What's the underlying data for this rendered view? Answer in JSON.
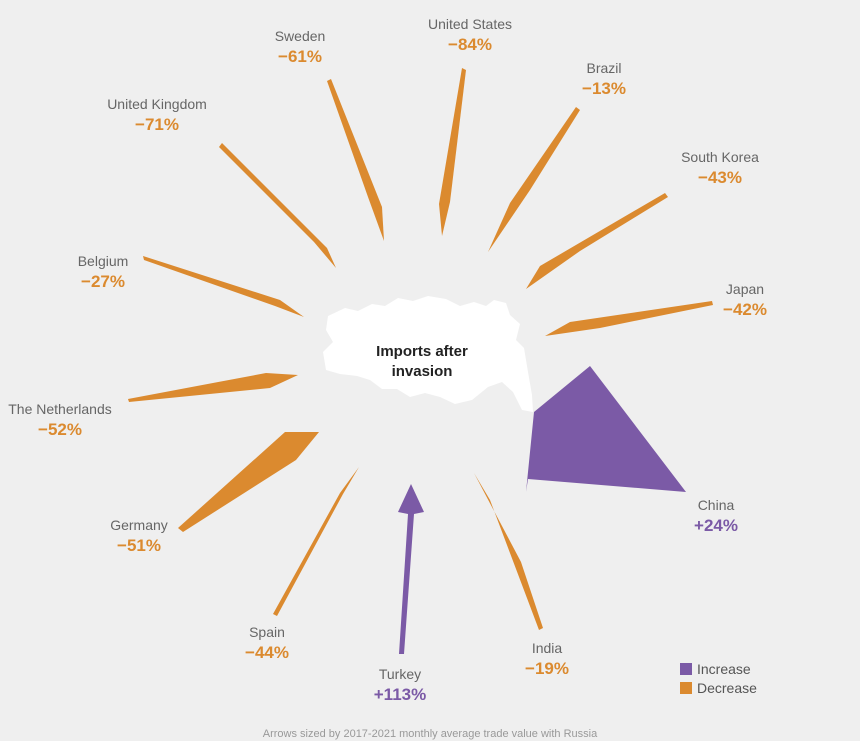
{
  "colors": {
    "increase": "#7b5aa6",
    "decrease": "#db8a2f",
    "map": "#ffffff"
  },
  "center_label": "Imports after invasion",
  "legend": {
    "increase": "Increase",
    "decrease": "Decrease"
  },
  "footnote": "Arrows sized by 2017-2021 monthly average trade value with Russia",
  "chart_data": {
    "type": "radial-arrow",
    "series": [
      {
        "country": "United States",
        "change": "−84%",
        "direction": "decrease"
      },
      {
        "country": "Brazil",
        "change": "−13%",
        "direction": "decrease"
      },
      {
        "country": "South Korea",
        "change": "−43%",
        "direction": "decrease"
      },
      {
        "country": "Japan",
        "change": "−42%",
        "direction": "decrease"
      },
      {
        "country": "China",
        "change": "+24%",
        "direction": "increase"
      },
      {
        "country": "India",
        "change": "−19%",
        "direction": "decrease"
      },
      {
        "country": "Turkey",
        "change": "+113%",
        "direction": "increase"
      },
      {
        "country": "Spain",
        "change": "−44%",
        "direction": "decrease"
      },
      {
        "country": "Germany",
        "change": "−51%",
        "direction": "decrease"
      },
      {
        "country": "The Netherlands",
        "change": "−52%",
        "direction": "decrease"
      },
      {
        "country": "Belgium",
        "change": "−27%",
        "direction": "decrease"
      },
      {
        "country": "United Kingdom",
        "change": "−71%",
        "direction": "decrease"
      },
      {
        "country": "Sweden",
        "change": "−61%",
        "direction": "decrease"
      }
    ]
  }
}
